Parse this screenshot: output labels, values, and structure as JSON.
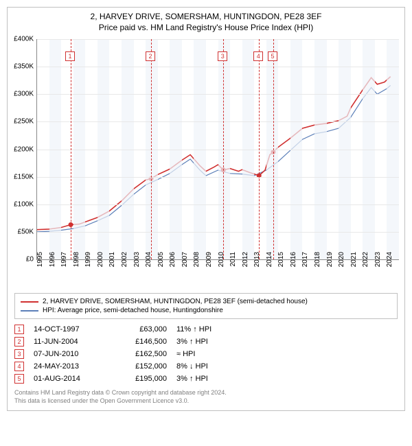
{
  "title1": "2, HARVEY DRIVE, SOMERSHAM, HUNTINGDON, PE28 3EF",
  "title2": "Price paid vs. HM Land Registry's House Price Index (HPI)",
  "chart": {
    "type": "line",
    "xlim": [
      1995,
      2025
    ],
    "ylim": [
      0,
      400000
    ],
    "ytick_step": 50000,
    "yticks": [
      "£0",
      "£50K",
      "£100K",
      "£150K",
      "£200K",
      "£250K",
      "£300K",
      "£350K",
      "£400K"
    ],
    "xticks": [
      1995,
      1996,
      1997,
      1998,
      1999,
      2000,
      2001,
      2002,
      2003,
      2004,
      2005,
      2006,
      2007,
      2008,
      2009,
      2010,
      2011,
      2012,
      2013,
      2014,
      2015,
      2016,
      2017,
      2018,
      2019,
      2020,
      2021,
      2022,
      2023,
      2024
    ],
    "band_years": [
      1996,
      1998,
      2000,
      2002,
      2004,
      2006,
      2008,
      2010,
      2012,
      2014,
      2016,
      2018,
      2020,
      2022,
      2024
    ],
    "grid_color": "#e8e8e8",
    "background_color": "#ffffff",
    "colors": {
      "property": "#d03030",
      "hpi": "#5b7fb8"
    },
    "series": {
      "property": [
        [
          1995,
          54000
        ],
        [
          1996,
          55000
        ],
        [
          1997,
          58000
        ],
        [
          1997.8,
          63000
        ],
        [
          1998.5,
          64000
        ],
        [
          1999,
          68000
        ],
        [
          2000,
          76000
        ],
        [
          2001,
          88000
        ],
        [
          2002,
          106000
        ],
        [
          2003,
          128000
        ],
        [
          2004,
          144000
        ],
        [
          2004.45,
          146500
        ],
        [
          2005,
          154000
        ],
        [
          2006,
          164000
        ],
        [
          2007,
          180000
        ],
        [
          2007.7,
          190000
        ],
        [
          2008.5,
          170000
        ],
        [
          2009,
          160000
        ],
        [
          2009.7,
          168000
        ],
        [
          2010,
          172000
        ],
        [
          2010.44,
          162500
        ],
        [
          2011,
          165000
        ],
        [
          2011.7,
          160000
        ],
        [
          2012,
          163000
        ],
        [
          2012.6,
          158000
        ],
        [
          2013,
          155000
        ],
        [
          2013.4,
          152000
        ],
        [
          2013.9,
          162000
        ],
        [
          2014.3,
          190000
        ],
        [
          2014.58,
          195000
        ],
        [
          2015,
          204000
        ],
        [
          2016,
          220000
        ],
        [
          2017,
          238000
        ],
        [
          2018,
          244000
        ],
        [
          2019,
          247000
        ],
        [
          2020,
          252000
        ],
        [
          2020.7,
          260000
        ],
        [
          2021,
          275000
        ],
        [
          2022,
          308000
        ],
        [
          2022.7,
          330000
        ],
        [
          2023.2,
          318000
        ],
        [
          2023.8,
          322000
        ],
        [
          2024.3,
          332000
        ]
      ],
      "hpi": [
        [
          1995,
          50000
        ],
        [
          1996,
          51000
        ],
        [
          1997,
          53000
        ],
        [
          1998,
          56000
        ],
        [
          1999,
          61000
        ],
        [
          2000,
          70000
        ],
        [
          2001,
          80000
        ],
        [
          2002,
          98000
        ],
        [
          2003,
          118000
        ],
        [
          2004,
          135000
        ],
        [
          2005,
          145000
        ],
        [
          2006,
          156000
        ],
        [
          2007,
          172000
        ],
        [
          2007.7,
          182000
        ],
        [
          2008.5,
          162000
        ],
        [
          2009,
          152000
        ],
        [
          2010,
          162000
        ],
        [
          2011,
          156000
        ],
        [
          2012,
          155000
        ],
        [
          2013,
          152000
        ],
        [
          2014,
          162000
        ],
        [
          2015,
          178000
        ],
        [
          2016,
          198000
        ],
        [
          2017,
          218000
        ],
        [
          2018,
          228000
        ],
        [
          2019,
          232000
        ],
        [
          2020,
          238000
        ],
        [
          2021,
          258000
        ],
        [
          2022,
          292000
        ],
        [
          2022.7,
          312000
        ],
        [
          2023.2,
          300000
        ],
        [
          2024,
          310000
        ],
        [
          2024.3,
          316000
        ]
      ]
    },
    "markers": [
      {
        "n": "1",
        "x": 1997.79
      },
      {
        "n": "2",
        "x": 2004.45
      },
      {
        "n": "3",
        "x": 2010.44
      },
      {
        "n": "4",
        "x": 2013.4
      },
      {
        "n": "5",
        "x": 2014.58
      }
    ],
    "sale_dots": [
      [
        1997.79,
        63000
      ],
      [
        2004.45,
        146500
      ],
      [
        2010.44,
        162500
      ],
      [
        2013.4,
        152000
      ],
      [
        2014.58,
        195000
      ]
    ]
  },
  "legend": {
    "series1": "2, HARVEY DRIVE, SOMERSHAM, HUNTINGDON, PE28 3EF (semi-detached house)",
    "series2": "HPI: Average price, semi-detached house, Huntingdonshire"
  },
  "transactions": [
    {
      "n": "1",
      "date": "14-OCT-1997",
      "price": "£63,000",
      "diff": "11% ↑ HPI"
    },
    {
      "n": "2",
      "date": "11-JUN-2004",
      "price": "£146,500",
      "diff": "3% ↑ HPI"
    },
    {
      "n": "3",
      "date": "07-JUN-2010",
      "price": "£162,500",
      "diff": "≈ HPI"
    },
    {
      "n": "4",
      "date": "24-MAY-2013",
      "price": "£152,000",
      "diff": "8% ↓ HPI"
    },
    {
      "n": "5",
      "date": "01-AUG-2014",
      "price": "£195,000",
      "diff": "3% ↑ HPI"
    }
  ],
  "footer1": "Contains HM Land Registry data © Crown copyright and database right 2024.",
  "footer2": "This data is licensed under the Open Government Licence v3.0."
}
